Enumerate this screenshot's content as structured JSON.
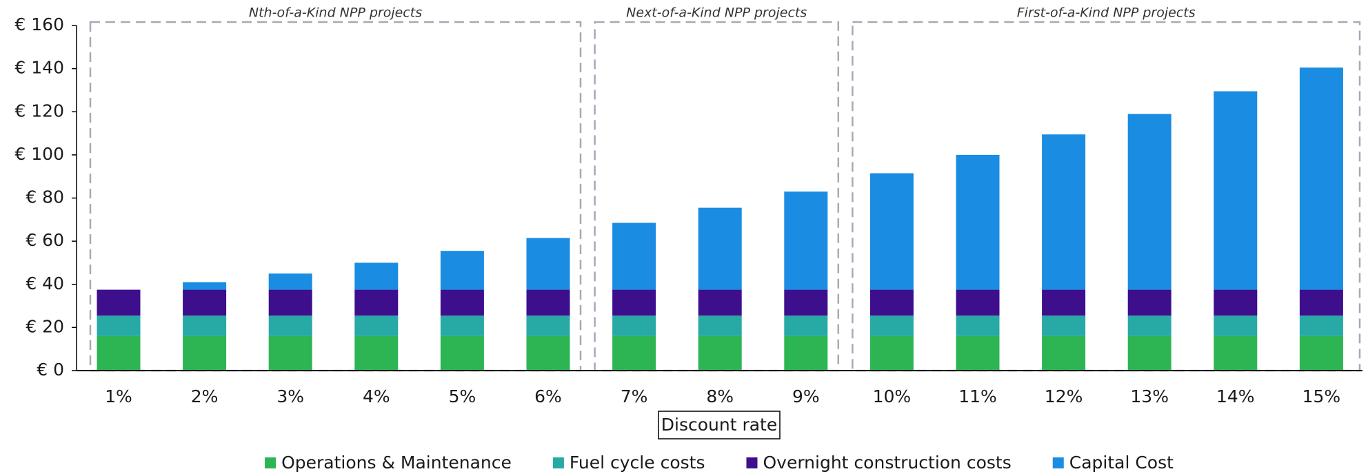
{
  "chart_data": {
    "type": "stacked_bar",
    "x_label": "Discount rate",
    "categories": [
      "1%",
      "2%",
      "3%",
      "4%",
      "5%",
      "6%",
      "7%",
      "8%",
      "9%",
      "10%",
      "11%",
      "12%",
      "13%",
      "14%",
      "15%"
    ],
    "series": [
      {
        "name": "Operations & Maintenance",
        "color": "#2db553",
        "values": [
          16,
          16,
          16,
          16,
          16,
          16,
          16,
          16,
          16,
          16,
          16,
          16,
          16,
          16,
          16
        ]
      },
      {
        "name": "Fuel cycle costs",
        "color": "#27a9a5",
        "values": [
          9.5,
          9.5,
          9.5,
          9.5,
          9.5,
          9.5,
          9.5,
          9.5,
          9.5,
          9.5,
          9.5,
          9.5,
          9.5,
          9.5,
          9.5
        ]
      },
      {
        "name": "Overnight construction costs",
        "color": "#3d0f8c",
        "values": [
          12,
          12,
          12,
          12,
          12,
          12,
          12,
          12,
          12,
          12,
          12,
          12,
          12,
          12,
          12
        ]
      },
      {
        "name": "Capital Cost",
        "color": "#1a8ce2",
        "values": [
          0,
          3.5,
          7.5,
          12.5,
          18,
          24,
          31,
          38,
          45.5,
          54,
          62.5,
          72,
          81.5,
          92,
          103
        ]
      }
    ],
    "ylim": [
      0,
      160
    ],
    "yticks": [
      {
        "value": 0,
        "label": "€ 0"
      },
      {
        "value": 20,
        "label": "€ 20"
      },
      {
        "value": 40,
        "label": "€ 40"
      },
      {
        "value": 60,
        "label": "€ 60"
      },
      {
        "value": 80,
        "label": "€ 80"
      },
      {
        "value": 100,
        "label": "€ 100"
      },
      {
        "value": 120,
        "label": "€ 120"
      },
      {
        "value": 140,
        "label": "€ 140"
      },
      {
        "value": 160,
        "label": "€ 160"
      }
    ],
    "annotations": [
      {
        "text": "Nth-of-a-Kind NPP projects",
        "from": "1%",
        "to": "6%"
      },
      {
        "text": "Next-of-a-Kind NPP projects",
        "from": "7%",
        "to": "9%"
      },
      {
        "text": "First-of-a-Kind NPP projects",
        "from": "10%",
        "to": "15%"
      }
    ],
    "legend": "bottom"
  }
}
